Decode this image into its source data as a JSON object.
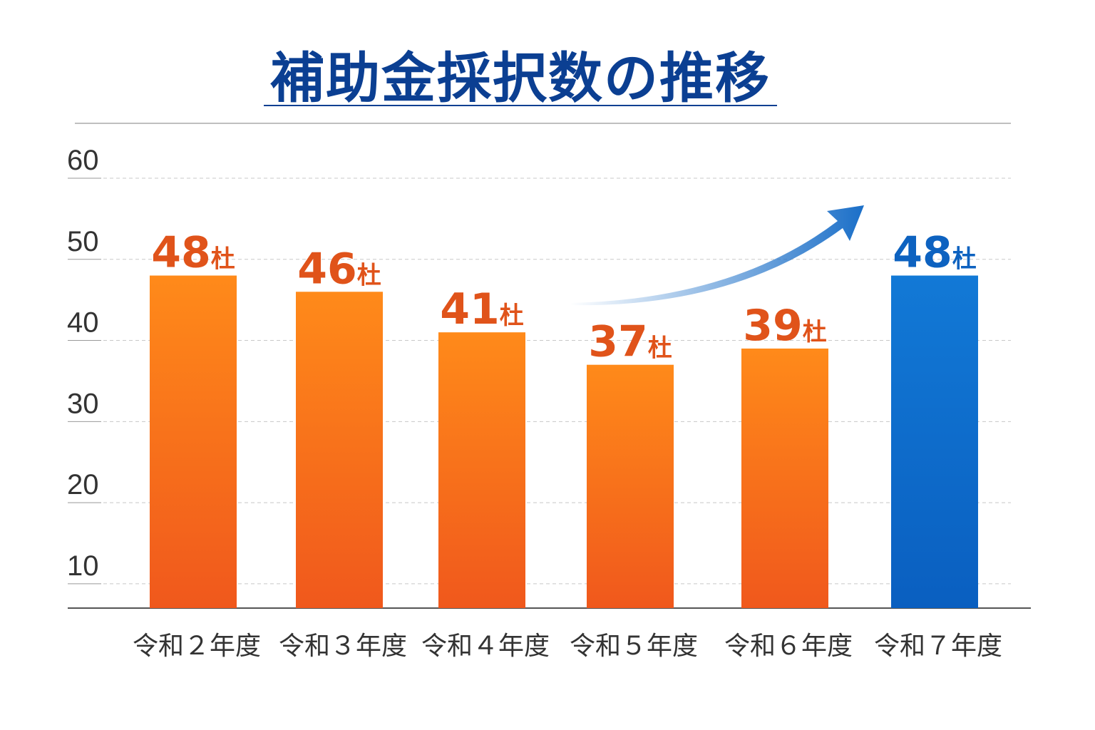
{
  "chart_data": {
    "type": "bar",
    "title": "補助金採択数の推移",
    "categories": [
      "令和２年度",
      "令和３年度",
      "令和４年度",
      "令和５年度",
      "令和６年度",
      "令和７年度"
    ],
    "values": [
      48,
      46,
      41,
      37,
      39,
      48
    ],
    "value_labels": [
      "48",
      "46",
      "41",
      "37",
      "39",
      "48"
    ],
    "unit": "杜",
    "yticks": [
      10,
      20,
      30,
      40,
      50,
      60
    ],
    "ylim": [
      7,
      60
    ],
    "grid": true,
    "colors": {
      "bar": "#f26a1b",
      "bar_top": "#ff8a1a",
      "highlight": "#0d6fd0",
      "label": "#e0531a",
      "highlight_label": "#0d62c0",
      "title": "#0b3f92"
    },
    "highlight_index": 5,
    "annotation": "upward-trend-arrow"
  }
}
